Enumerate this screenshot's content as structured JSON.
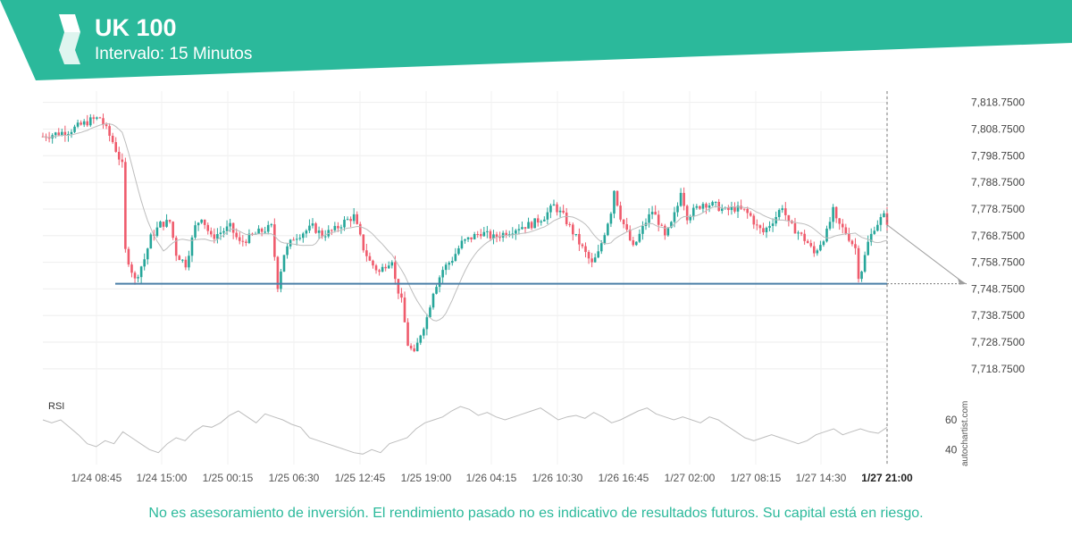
{
  "header": {
    "title": "UK 100",
    "subtitle": "Intervalo: 15 Minutos",
    "brand_color": "#2bb99b"
  },
  "footer": {
    "disclaimer": "No es asesoramiento de inversión. El rendimiento pasado no es indicativo de resultados futuros. Su capital está en riesgo."
  },
  "watermark": "autochartist.com",
  "chart_data": {
    "type": "candlestick",
    "instrument": "UK 100",
    "interval": "15 Minutos",
    "y_axis": {
      "ticks": [
        "7,818.7500",
        "7,808.7500",
        "7,798.7500",
        "7,788.7500",
        "7,778.7500",
        "7,768.7500",
        "7,758.7500",
        "7,748.7500",
        "7,738.7500",
        "7,728.7500",
        "7,718.7500"
      ],
      "range": [
        7713,
        7823
      ]
    },
    "x_axis": {
      "ticks": [
        "1/24 08:45",
        "1/24 15:00",
        "1/25 00:15",
        "1/25 06:30",
        "1/25 12:45",
        "1/25 19:00",
        "1/26 04:15",
        "1/26 10:30",
        "1/26 16:45",
        "1/27 02:00",
        "1/27 08:15",
        "1/27 14:30",
        "1/27 21:00"
      ],
      "highlight": "1/27 21:00"
    },
    "colors": {
      "up": "#26a69a",
      "down": "#ef5b6c",
      "level": "#4a7fa7",
      "ma": "#bdbdbd",
      "rsi": "#bdbdbd"
    },
    "price_path": [
      [
        0,
        7806
      ],
      [
        8,
        7808
      ],
      [
        15,
        7812
      ],
      [
        18,
        7813
      ],
      [
        22,
        7804
      ],
      [
        25,
        7795
      ],
      [
        26,
        7763
      ],
      [
        29,
        7752
      ],
      [
        32,
        7760
      ],
      [
        34,
        7768
      ],
      [
        37,
        7773
      ],
      [
        40,
        7774
      ],
      [
        42,
        7762
      ],
      [
        45,
        7758
      ],
      [
        48,
        7772
      ],
      [
        50,
        7776
      ],
      [
        53,
        7768
      ],
      [
        56,
        7770
      ],
      [
        59,
        7772
      ],
      [
        62,
        7766
      ],
      [
        65,
        7768
      ],
      [
        68,
        7770
      ],
      [
        72,
        7772
      ],
      [
        74,
        7750
      ],
      [
        76,
        7762
      ],
      [
        79,
        7768
      ],
      [
        82,
        7770
      ],
      [
        85,
        7772
      ],
      [
        88,
        7769
      ],
      [
        92,
        7771
      ],
      [
        95,
        7774
      ],
      [
        98,
        7776
      ],
      [
        101,
        7764
      ],
      [
        103,
        7759
      ],
      [
        106,
        7755
      ],
      [
        108,
        7758
      ],
      [
        110,
        7760
      ],
      [
        111,
        7752
      ],
      [
        113,
        7744
      ],
      [
        115,
        7728
      ],
      [
        117,
        7724
      ],
      [
        119,
        7732
      ],
      [
        121,
        7738
      ],
      [
        123,
        7748
      ],
      [
        126,
        7756
      ],
      [
        129,
        7760
      ],
      [
        132,
        7766
      ],
      [
        135,
        7768
      ],
      [
        138,
        7770
      ],
      [
        142,
        7768
      ],
      [
        146,
        7770
      ],
      [
        150,
        7772
      ],
      [
        154,
        7773
      ],
      [
        158,
        7776
      ],
      [
        161,
        7780
      ],
      [
        164,
        7776
      ],
      [
        167,
        7770
      ],
      [
        169,
        7766
      ],
      [
        171,
        7762
      ],
      [
        173,
        7758
      ],
      [
        175,
        7762
      ],
      [
        177,
        7770
      ],
      [
        179,
        7778
      ],
      [
        180,
        7786
      ],
      [
        182,
        7776
      ],
      [
        184,
        7770
      ],
      [
        186,
        7764
      ],
      [
        188,
        7769
      ],
      [
        190,
        7774
      ],
      [
        192,
        7778
      ],
      [
        194,
        7774
      ],
      [
        196,
        7768
      ],
      [
        198,
        7773
      ],
      [
        200,
        7780
      ],
      [
        201,
        7786
      ],
      [
        203,
        7776
      ],
      [
        205,
        7778
      ],
      [
        208,
        7781
      ],
      [
        212,
        7780
      ],
      [
        215,
        7778
      ],
      [
        218,
        7779
      ],
      [
        221,
        7778
      ],
      [
        223,
        7776
      ],
      [
        225,
        7772
      ],
      [
        227,
        7770
      ],
      [
        229,
        7773
      ],
      [
        231,
        7776
      ],
      [
        233,
        7780
      ],
      [
        235,
        7773
      ],
      [
        238,
        7770
      ],
      [
        241,
        7766
      ],
      [
        243,
        7762
      ],
      [
        245,
        7766
      ],
      [
        247,
        7770
      ],
      [
        249,
        7778
      ],
      [
        250,
        7774
      ],
      [
        253,
        7770
      ],
      [
        256,
        7764
      ],
      [
        257,
        7754
      ],
      [
        258,
        7756
      ],
      [
        260,
        7766
      ],
      [
        262,
        7772
      ],
      [
        264,
        7775
      ],
      [
        265,
        7776
      ],
      [
        266,
        7774
      ]
    ],
    "resistance_level": {
      "value": 7750.7,
      "from_x": "1/24 08:45",
      "to_x": "1/27 21:00"
    },
    "forecast_target": 7750.7,
    "indicator": {
      "name": "RSI",
      "ticks": [
        60,
        40
      ],
      "path": [
        60,
        58,
        60,
        55,
        50,
        44,
        42,
        46,
        44,
        52,
        48,
        44,
        40,
        38,
        44,
        48,
        46,
        52,
        56,
        55,
        58,
        63,
        66,
        62,
        58,
        64,
        62,
        60,
        57,
        55,
        48,
        46,
        44,
        42,
        40,
        38,
        37,
        40,
        38,
        44,
        46,
        48,
        54,
        58,
        60,
        62,
        66,
        69,
        67,
        63,
        65,
        62,
        60,
        62,
        64,
        66,
        68,
        64,
        60,
        62,
        63,
        61,
        65,
        62,
        58,
        60,
        63,
        66,
        68,
        64,
        62,
        60,
        62,
        60,
        58,
        62,
        60,
        56,
        52,
        48,
        46,
        48,
        50,
        48,
        46,
        44,
        46,
        50,
        52,
        54,
        50,
        52,
        54,
        52,
        51,
        55
      ]
    }
  }
}
